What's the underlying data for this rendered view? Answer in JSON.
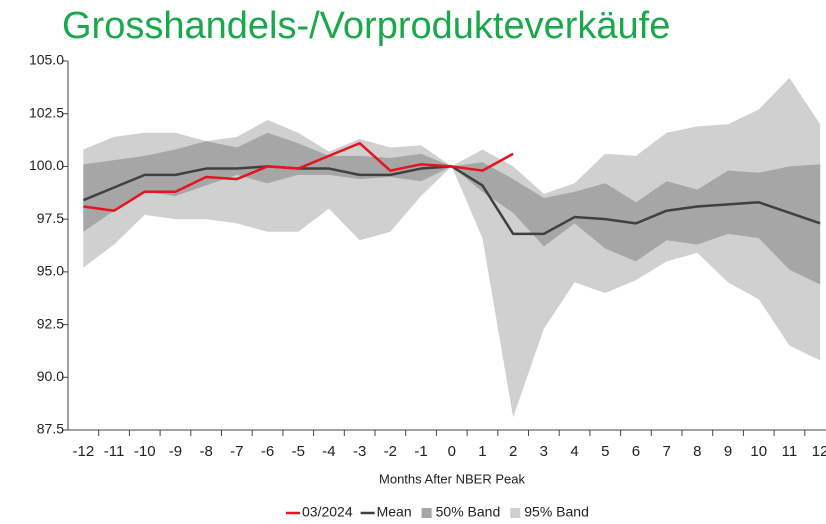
{
  "chart_data": {
    "type": "band-line",
    "title": "Grosshandels-/Vorprodukteverkäufe",
    "x_label": "Months After NBER Peak",
    "x": [
      -12,
      -11,
      -10,
      -9,
      -8,
      -7,
      -6,
      -5,
      -4,
      -3,
      -2,
      -1,
      0,
      1,
      2,
      3,
      4,
      5,
      6,
      7,
      8,
      9,
      10,
      11,
      12
    ],
    "xlim": [
      -12.5,
      12.5
    ],
    "xticks": [
      -12,
      -11,
      -10,
      -9,
      -8,
      -7,
      -6,
      -5,
      -4,
      -3,
      -2,
      -1,
      0,
      1,
      2,
      3,
      4,
      5,
      6,
      7,
      8,
      9,
      10,
      11,
      12
    ],
    "ylim": [
      87.5,
      105
    ],
    "yticks": [
      {
        "value": 87.5,
        "label": "87.5"
      },
      {
        "value": 90,
        "label": "90.0"
      },
      {
        "value": 92.5,
        "label": "92.5"
      },
      {
        "value": 95,
        "label": "95.0"
      },
      {
        "value": 97.5,
        "label": "97.5"
      },
      {
        "value": 100,
        "label": "100.0"
      },
      {
        "value": 102.5,
        "label": "102.5"
      },
      {
        "value": 105,
        "label": "105.0"
      }
    ],
    "bands": [
      {
        "name": "95% Band",
        "color": "#d0d0d0",
        "upper": [
          100.8,
          101.4,
          101.6,
          101.6,
          101.2,
          101.4,
          102.2,
          101.6,
          100.7,
          101.3,
          100.9,
          101.0,
          100.0,
          100.8,
          100.0,
          98.7,
          99.2,
          100.6,
          100.5,
          101.6,
          101.9,
          102.0,
          102.7,
          104.2,
          102.0
        ],
        "lower": [
          95.2,
          96.3,
          97.7,
          97.5,
          97.5,
          97.3,
          96.9,
          96.9,
          98.0,
          96.5,
          96.9,
          98.6,
          100.0,
          96.6,
          88.1,
          92.3,
          94.5,
          94.0,
          94.6,
          95.5,
          95.9,
          94.5,
          93.7,
          91.5,
          90.8
        ]
      },
      {
        "name": "50% Band",
        "color": "#a6a6a6",
        "upper": [
          100.1,
          100.3,
          100.5,
          100.8,
          101.2,
          100.9,
          101.6,
          101.1,
          100.5,
          100.5,
          100.4,
          100.6,
          100.0,
          100.2,
          99.4,
          98.5,
          98.8,
          99.2,
          98.3,
          99.3,
          98.9,
          99.8,
          99.7,
          100.0,
          100.1
        ],
        "lower": [
          96.9,
          97.9,
          98.8,
          98.6,
          99.1,
          99.6,
          99.2,
          99.6,
          99.6,
          99.4,
          99.5,
          99.3,
          100.0,
          98.8,
          97.8,
          96.2,
          97.3,
          96.1,
          95.5,
          96.5,
          96.3,
          96.8,
          96.6,
          95.1,
          94.4
        ]
      }
    ],
    "series": [
      {
        "name": "03/2024",
        "color": "#e8131c",
        "values": [
          98.1,
          97.9,
          98.8,
          98.8,
          99.5,
          99.4,
          100.0,
          99.9,
          100.5,
          101.1,
          99.8,
          100.1,
          100.0,
          99.8,
          100.6,
          null,
          null,
          null,
          null,
          null,
          null,
          null,
          null,
          null,
          null
        ]
      },
      {
        "name": "Mean",
        "color": "#404040",
        "values": [
          98.4,
          99.0,
          99.6,
          99.6,
          99.9,
          99.9,
          100.0,
          99.9,
          99.9,
          99.6,
          99.6,
          99.9,
          100.0,
          99.1,
          96.8,
          96.8,
          97.6,
          97.5,
          97.3,
          97.9,
          98.1,
          98.2,
          98.3,
          97.8,
          97.3
        ]
      }
    ]
  }
}
